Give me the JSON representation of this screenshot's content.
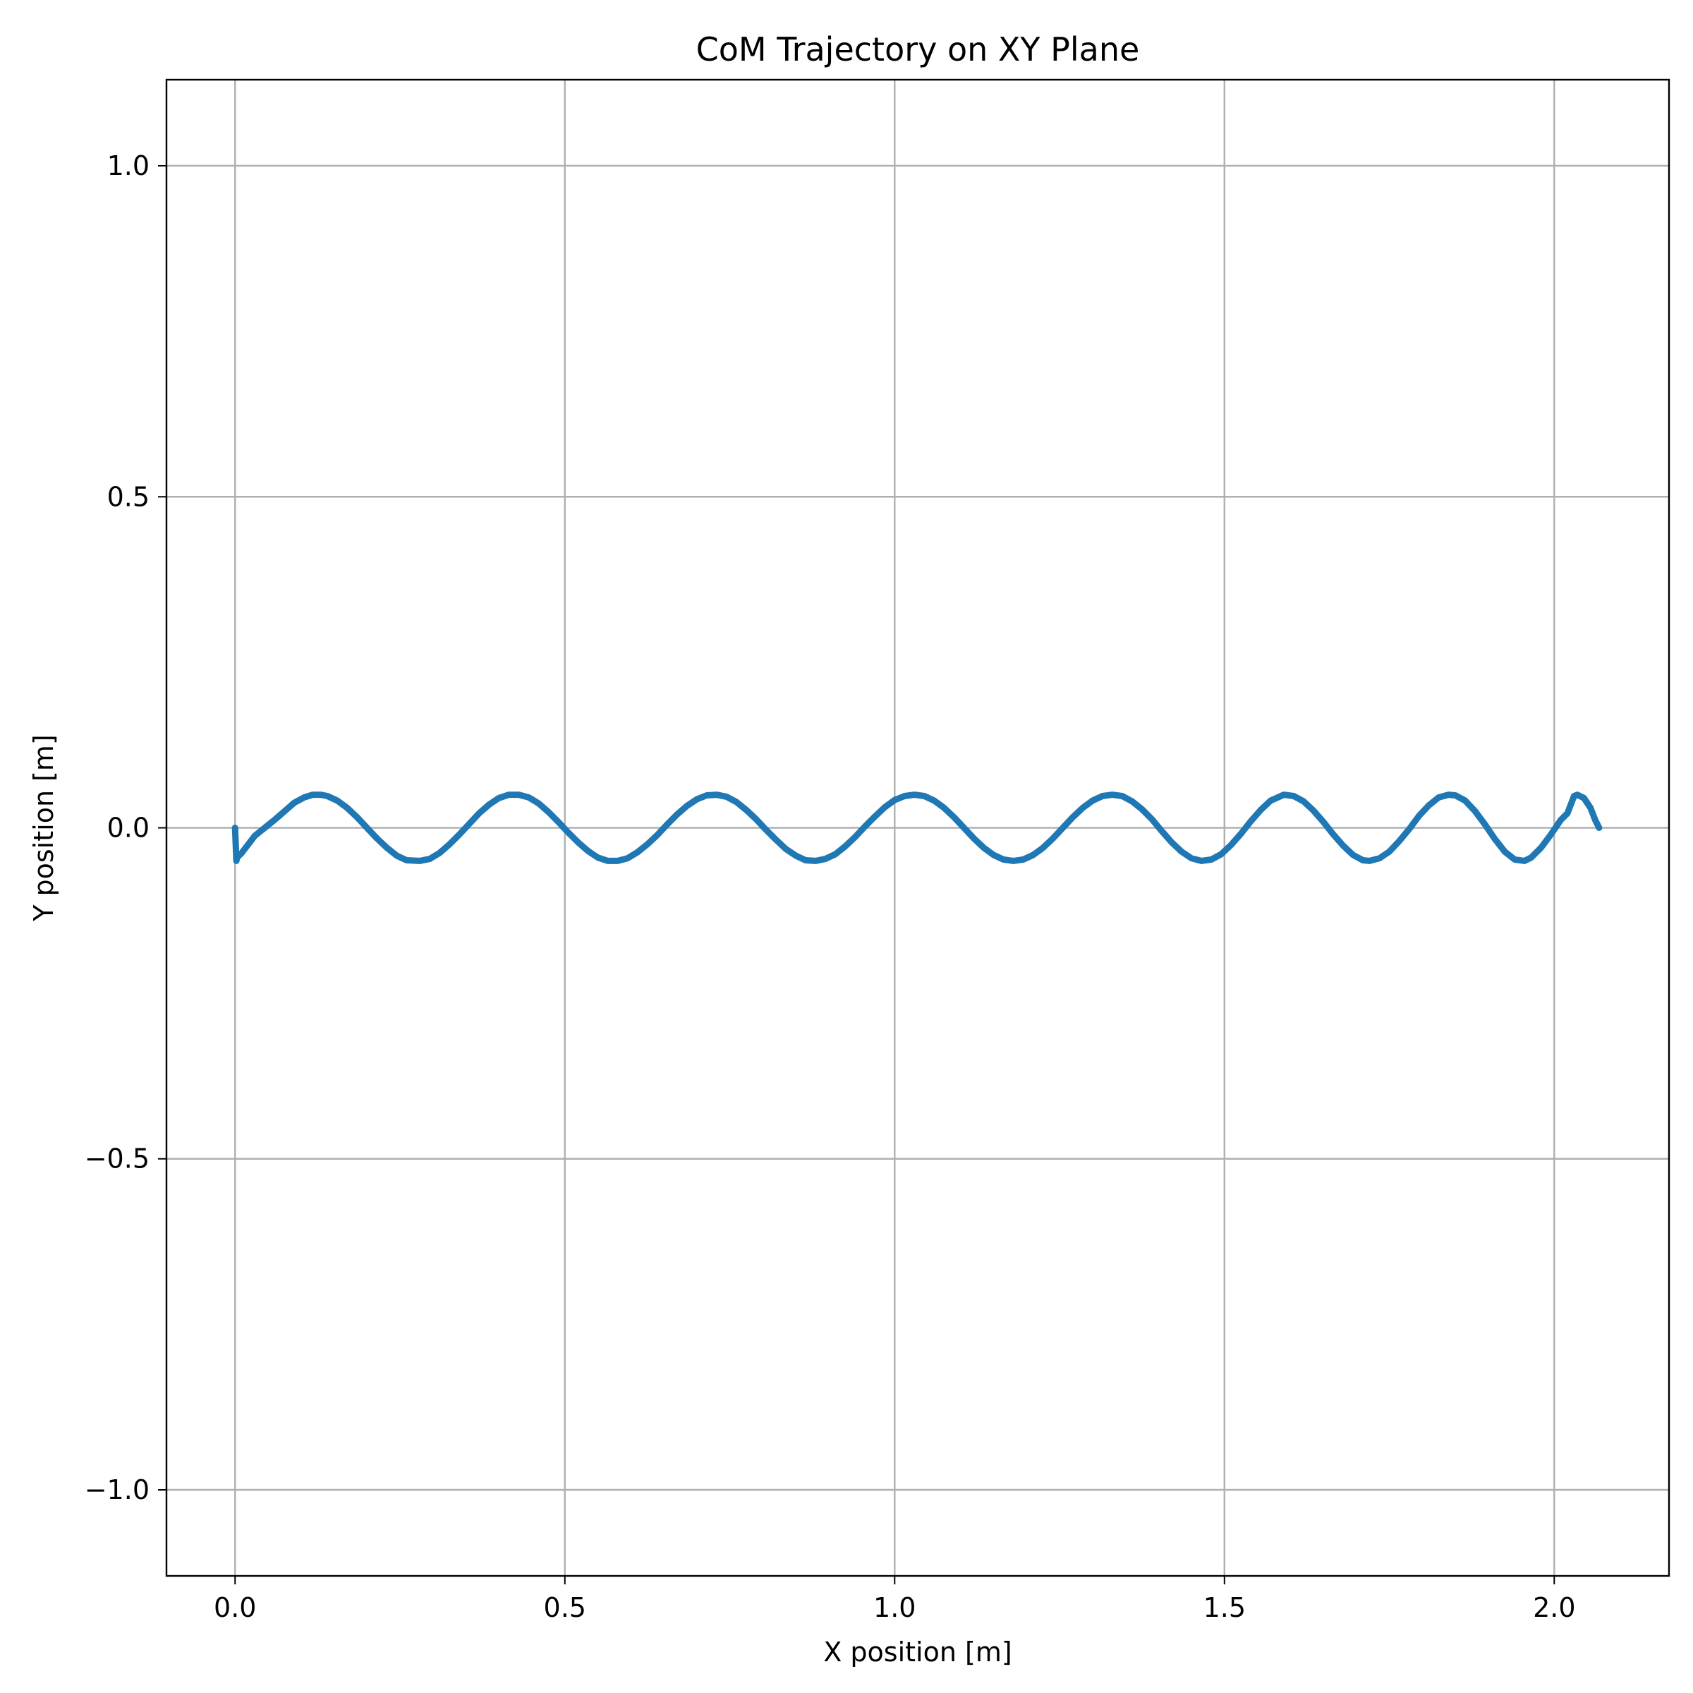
{
  "chart_data": {
    "type": "line",
    "title": "CoM Trajectory on XY Plane",
    "xlabel": "X position [m]",
    "ylabel": "Y position [m]",
    "xlim": [
      -0.104,
      2.174
    ],
    "ylim": [
      -1.13,
      1.13
    ],
    "grid": true,
    "x_ticks": [
      0.0,
      0.5,
      1.0,
      1.5,
      2.0
    ],
    "x_tick_labels": [
      "0.0",
      "0.5",
      "1.0",
      "1.5",
      "2.0"
    ],
    "y_ticks": [
      1.0,
      0.5,
      0.0,
      -0.5,
      -1.0
    ],
    "y_tick_labels": [
      "1.0",
      "0.5",
      "0.0",
      "−0.5",
      "−1.0"
    ],
    "series": [
      {
        "color": "#1f77b4",
        "x": [
          0.0,
          0.002,
          0.003,
          0.01,
          0.02,
          0.03,
          0.045,
          0.06,
          0.075,
          0.09,
          0.105,
          0.118,
          0.13,
          0.14,
          0.155,
          0.17,
          0.185,
          0.2,
          0.215,
          0.23,
          0.245,
          0.26,
          0.28,
          0.295,
          0.31,
          0.325,
          0.34,
          0.355,
          0.37,
          0.385,
          0.4,
          0.415,
          0.43,
          0.445,
          0.46,
          0.475,
          0.49,
          0.505,
          0.52,
          0.535,
          0.55,
          0.565,
          0.58,
          0.595,
          0.61,
          0.625,
          0.64,
          0.655,
          0.67,
          0.685,
          0.7,
          0.715,
          0.73,
          0.745,
          0.76,
          0.775,
          0.79,
          0.805,
          0.82,
          0.835,
          0.85,
          0.865,
          0.88,
          0.895,
          0.91,
          0.925,
          0.94,
          0.955,
          0.97,
          0.985,
          1.0,
          1.015,
          1.03,
          1.045,
          1.06,
          1.075,
          1.09,
          1.105,
          1.12,
          1.135,
          1.15,
          1.165,
          1.18,
          1.195,
          1.21,
          1.225,
          1.24,
          1.255,
          1.27,
          1.285,
          1.3,
          1.315,
          1.33,
          1.345,
          1.36,
          1.375,
          1.39,
          1.405,
          1.42,
          1.435,
          1.45,
          1.465,
          1.48,
          1.495,
          1.51,
          1.525,
          1.54,
          1.555,
          1.57,
          1.59,
          1.605,
          1.62,
          1.635,
          1.65,
          1.665,
          1.68,
          1.695,
          1.71,
          1.72,
          1.735,
          1.75,
          1.765,
          1.78,
          1.795,
          1.81,
          1.825,
          1.84,
          1.85,
          1.865,
          1.88,
          1.895,
          1.91,
          1.925,
          1.94,
          1.955,
          1.965,
          1.98,
          1.995,
          2.01,
          2.02,
          2.025,
          2.03,
          2.035,
          2.045,
          2.055,
          2.062,
          2.068
        ],
        "y": [
          0.0,
          -0.05,
          -0.045,
          -0.038,
          -0.025,
          -0.012,
          0.0,
          0.012,
          0.025,
          0.038,
          0.046,
          0.05,
          0.05,
          0.048,
          0.041,
          0.03,
          0.016,
          0.0,
          -0.016,
          -0.03,
          -0.042,
          -0.049,
          -0.05,
          -0.047,
          -0.038,
          -0.025,
          -0.01,
          0.006,
          0.022,
          0.035,
          0.045,
          0.05,
          0.05,
          0.046,
          0.037,
          0.024,
          0.009,
          -0.007,
          -0.022,
          -0.035,
          -0.045,
          -0.05,
          -0.05,
          -0.046,
          -0.037,
          -0.025,
          -0.011,
          0.005,
          0.02,
          0.033,
          0.043,
          0.049,
          0.05,
          0.047,
          0.039,
          0.027,
          0.013,
          -0.003,
          -0.018,
          -0.032,
          -0.042,
          -0.049,
          -0.05,
          -0.047,
          -0.04,
          -0.028,
          -0.014,
          0.002,
          0.017,
          0.031,
          0.042,
          0.048,
          0.05,
          0.048,
          0.041,
          0.03,
          0.016,
          0.0,
          -0.016,
          -0.03,
          -0.041,
          -0.048,
          -0.05,
          -0.048,
          -0.041,
          -0.03,
          -0.016,
          0.0,
          0.016,
          0.03,
          0.041,
          0.048,
          0.05,
          0.048,
          0.04,
          0.028,
          0.013,
          -0.005,
          -0.022,
          -0.036,
          -0.046,
          -0.05,
          -0.048,
          -0.04,
          -0.026,
          -0.009,
          0.01,
          0.027,
          0.041,
          0.05,
          0.048,
          0.04,
          0.026,
          0.009,
          -0.01,
          -0.027,
          -0.041,
          -0.049,
          -0.05,
          -0.046,
          -0.036,
          -0.02,
          -0.002,
          0.018,
          0.034,
          0.046,
          0.05,
          0.049,
          0.041,
          0.025,
          0.005,
          -0.017,
          -0.036,
          -0.048,
          -0.05,
          -0.045,
          -0.03,
          -0.01,
          0.012,
          0.022,
          0.035,
          0.048,
          0.05,
          0.045,
          0.03,
          0.012,
          0.0
        ]
      }
    ]
  }
}
